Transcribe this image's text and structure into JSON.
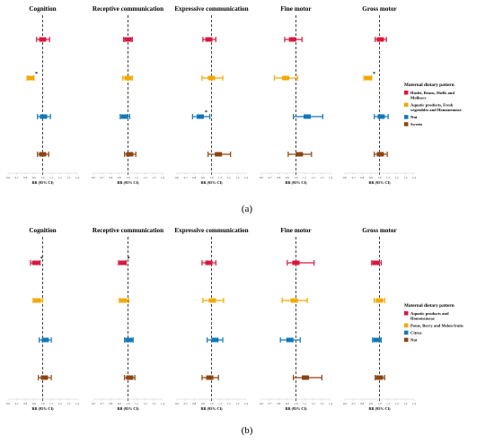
{
  "chart_data": [
    {
      "type": "forest",
      "label": "(a)",
      "legend_title": "Maternal dietary pattern",
      "categories": [
        "Haslet, Beans, Shells and Molluscs",
        "Aquatic products, Fresh vegetables and Homonemeae",
        "Nut",
        "Sweets"
      ],
      "colors": [
        "#d7193f",
        "#f2a900",
        "#1378b8",
        "#8b4513"
      ],
      "xlabel": "RR (95% CI)",
      "xticks": [
        "0.6",
        "0.7",
        "0.8",
        "0.9",
        "1.0",
        "1.1",
        "1.2",
        "1.3",
        "1.4"
      ],
      "xlim": [
        0.6,
        1.4
      ],
      "panels": [
        {
          "title": "Cognition",
          "rr": [
            1.0,
            0.86,
            1.01,
            1.0
          ],
          "lo": [
            0.93,
            0.82,
            0.94,
            0.94
          ],
          "hi": [
            1.08,
            0.9,
            1.09,
            1.07
          ],
          "sig": [
            false,
            true,
            false,
            false
          ]
        },
        {
          "title": "Receptive communication",
          "rr": [
            1.0,
            1.0,
            0.96,
            1.02
          ],
          "lo": [
            0.95,
            0.94,
            0.91,
            0.96
          ],
          "hi": [
            1.05,
            1.05,
            1.02,
            1.09
          ],
          "sig": [
            false,
            false,
            false,
            false
          ]
        },
        {
          "title": "Expressive communication",
          "rr": [
            0.97,
            1.0,
            0.87,
            1.08
          ],
          "lo": [
            0.9,
            0.89,
            0.78,
            0.96
          ],
          "hi": [
            1.05,
            1.13,
            0.98,
            1.22
          ],
          "sig": [
            false,
            false,
            true,
            false
          ]
        },
        {
          "title": "Fine motor",
          "rr": [
            0.96,
            0.88,
            1.13,
            1.04
          ],
          "lo": [
            0.87,
            0.75,
            0.97,
            0.91
          ],
          "hi": [
            1.07,
            1.02,
            1.31,
            1.18
          ],
          "sig": [
            false,
            false,
            false,
            false
          ]
        },
        {
          "title": "Gross motor",
          "rr": [
            1.01,
            0.87,
            1.02,
            1.01
          ],
          "lo": [
            0.95,
            0.82,
            0.94,
            0.94
          ],
          "hi": [
            1.08,
            0.91,
            1.1,
            1.09
          ],
          "sig": [
            false,
            true,
            false,
            false
          ]
        }
      ]
    },
    {
      "type": "forest",
      "label": "(b)",
      "legend_title": "Maternal dietary pattern",
      "categories": [
        "Aquatic products and Homonemeae",
        "Pome, Berry and Melon fruits",
        "Citrus",
        "Nut"
      ],
      "colors": [
        "#d7193f",
        "#f2a900",
        "#1378b8",
        "#8b4513"
      ],
      "xlabel": "RR (95% CI)",
      "xticks": [
        "0.6",
        "0.7",
        "0.8",
        "0.9",
        "1.0",
        "1.1",
        "1.2",
        "1.3",
        "1.4"
      ],
      "xlim": [
        0.6,
        1.4
      ],
      "panels": [
        {
          "title": "Cognition",
          "rr": [
            0.92,
            0.94,
            1.03,
            1.02
          ],
          "lo": [
            0.86,
            0.89,
            0.96,
            0.95
          ],
          "hi": [
            0.97,
            1.0,
            1.1,
            1.1
          ],
          "sig": [
            true,
            false,
            false,
            false
          ]
        },
        {
          "title": "Receptive communication",
          "rr": [
            0.94,
            0.95,
            1.01,
            1.02
          ],
          "lo": [
            0.89,
            0.9,
            0.96,
            0.96
          ],
          "hi": [
            0.98,
            1.01,
            1.06,
            1.08
          ],
          "sig": [
            true,
            false,
            false,
            false
          ]
        },
        {
          "title": "Expressive communication",
          "rr": [
            0.97,
            1.01,
            1.04,
            0.98
          ],
          "lo": [
            0.89,
            0.9,
            0.95,
            0.89
          ],
          "hi": [
            1.05,
            1.14,
            1.13,
            1.08
          ],
          "sig": [
            false,
            false,
            false,
            false
          ]
        },
        {
          "title": "Fine motor",
          "rr": [
            1.0,
            0.98,
            0.93,
            1.11
          ],
          "lo": [
            0.9,
            0.84,
            0.82,
            0.97
          ],
          "hi": [
            1.21,
            1.13,
            1.05,
            1.3
          ],
          "sig": [
            false,
            false,
            false,
            false
          ]
        },
        {
          "title": "Gross motor",
          "rr": [
            0.96,
            1.0,
            0.97,
            1.0
          ],
          "lo": [
            0.91,
            0.94,
            0.92,
            0.95
          ],
          "hi": [
            1.02,
            1.06,
            1.02,
            1.06
          ],
          "sig": [
            false,
            false,
            false,
            false
          ]
        }
      ]
    }
  ]
}
